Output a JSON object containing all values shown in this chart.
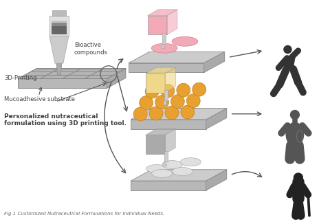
{
  "title": "Fig.1 Customized Nutraceutical Formulations for Individual Needs.",
  "bg_color": "#ffffff",
  "label_bioactive": "Bioactive\ncompounds",
  "label_printing": "3D-Printing",
  "label_mucoadhesive": "Mucoadhesive substrate",
  "label_personalized": "Personalized nutraceutical\nformulation using 3D printing tool.",
  "pink_color": "#f2aab8",
  "yellow_color": "#f0d888",
  "orange_dot": "#e8a030",
  "gray_tray_top": "#c8c8c8",
  "gray_tray_front": "#b0b0b0",
  "gray_tray_right": "#a0a0a0",
  "text_color": "#404040",
  "arrow_color": "#555555",
  "figure_face": "#ffffff",
  "silhouette_dark": "#2a2a2a",
  "silhouette_mid": "#555555"
}
